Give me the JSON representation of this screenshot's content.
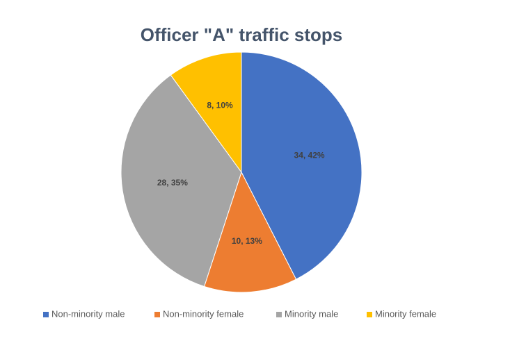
{
  "chart_data": {
    "type": "pie",
    "title": "Officer \"A\" traffic stops",
    "categories": [
      "Non-minority male",
      "Non-minority female",
      "Minority male",
      "Minority female"
    ],
    "values": [
      34,
      10,
      28,
      8
    ],
    "value_labels": [
      "34, 42%",
      "10, 13%",
      "28, 35%",
      "8, 10%"
    ],
    "colors": [
      "#4472c4",
      "#ed7d31",
      "#a5a5a5",
      "#ffc000"
    ],
    "legend": "bottom"
  }
}
